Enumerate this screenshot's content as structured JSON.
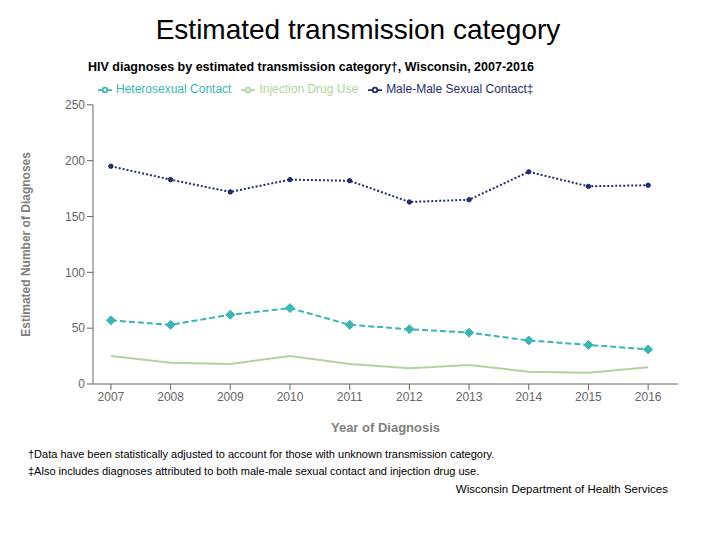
{
  "chart_data": {
    "type": "line",
    "title": "Estimated transmission category",
    "subtitle": "HIV diagnoses by estimated transmission category†, Wisconsin, 2007-2016",
    "xlabel": "Year of Diagnosis",
    "ylabel": "Estimated Number of Diagnoses",
    "x": [
      2007,
      2008,
      2009,
      2010,
      2011,
      2012,
      2013,
      2014,
      2015,
      2016
    ],
    "series": [
      {
        "name": "Male-Male Sexual Contact‡",
        "color": "#1f2d6e",
        "values": [
          195,
          183,
          172,
          183,
          182,
          163,
          165,
          190,
          177,
          178
        ],
        "marker": "point",
        "line_style": "dotted"
      },
      {
        "name": "Heterosexual Contact",
        "color": "#3ab5b5",
        "values": [
          57,
          53,
          62,
          68,
          53,
          49,
          46,
          39,
          35,
          31
        ],
        "marker": "diamond",
        "line_style": "dashed"
      },
      {
        "name": "Injection Drug Use",
        "color": "#b0d4a0",
        "values": [
          25,
          19,
          18,
          25,
          18,
          14,
          17,
          11,
          10,
          15
        ],
        "marker": "none",
        "line_style": "solid"
      }
    ],
    "xlim": [
      2006.7,
      2016.5
    ],
    "xticks": [
      2007,
      2008,
      2009,
      2010,
      2011,
      2012,
      2013,
      2014,
      2015,
      2016
    ],
    "ylim": [
      0,
      250
    ],
    "yticks": [
      0,
      50,
      100,
      150,
      200,
      250
    ],
    "grid": false,
    "legend": "upper left",
    "annotations": [
      "†Data have been statistically adjusted to account for those with unknown transmission category.",
      "‡Also includes diagnoses attributed to both male-male sexual contact and injection drug use.",
      "Wisconsin Department of Health Services"
    ]
  }
}
